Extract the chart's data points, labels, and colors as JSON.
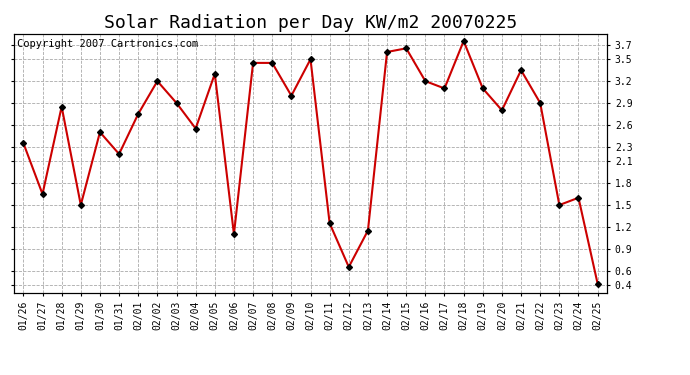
{
  "title": "Solar Radiation per Day KW/m2 20070225",
  "copyright_text": "Copyright 2007 Cartronics.com",
  "dates": [
    "01/26",
    "01/27",
    "01/28",
    "01/29",
    "01/30",
    "01/31",
    "02/01",
    "02/02",
    "02/03",
    "02/04",
    "02/05",
    "02/06",
    "02/07",
    "02/08",
    "02/09",
    "02/10",
    "02/11",
    "02/12",
    "02/13",
    "02/14",
    "02/15",
    "02/16",
    "02/17",
    "02/18",
    "02/19",
    "02/20",
    "02/21",
    "02/22",
    "02/23",
    "02/24",
    "02/25"
  ],
  "values": [
    2.35,
    1.65,
    2.85,
    1.5,
    2.5,
    2.2,
    2.75,
    3.2,
    2.9,
    2.55,
    3.3,
    1.1,
    3.45,
    3.45,
    3.0,
    3.5,
    1.25,
    0.65,
    1.15,
    3.6,
    3.65,
    3.2,
    3.1,
    3.75,
    3.1,
    2.8,
    3.35,
    2.9,
    1.5,
    1.6,
    0.42
  ],
  "line_color": "#cc0000",
  "marker_color": "#000000",
  "marker_style": "D",
  "marker_size": 3,
  "line_width": 1.5,
  "ylim": [
    0.3,
    3.85
  ],
  "yticks": [
    0.4,
    0.6,
    0.9,
    1.2,
    1.5,
    1.8,
    2.1,
    2.3,
    2.6,
    2.9,
    3.2,
    3.5,
    3.7
  ],
  "background_color": "#ffffff",
  "plot_bg_color": "#ffffff",
  "grid_color": "#aaaaaa",
  "grid_style": "--",
  "title_fontsize": 13,
  "copyright_fontsize": 7.5,
  "tick_fontsize": 7,
  "fig_width": 6.9,
  "fig_height": 3.75
}
